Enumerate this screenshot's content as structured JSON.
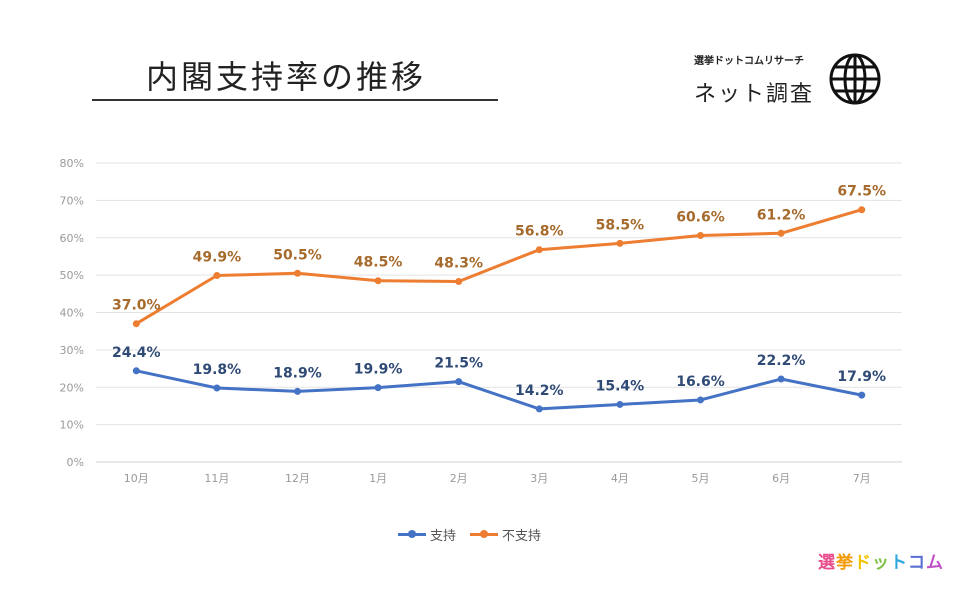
{
  "header": {
    "title": "内閣支持率の推移",
    "brand_small": "選挙ドットコムリサーチ",
    "brand_large": "ネット調査",
    "globe_icon": "globe-icon"
  },
  "chart_data": {
    "type": "line",
    "categories": [
      "10月",
      "11月",
      "12月",
      "1月",
      "2月",
      "3月",
      "4月",
      "5月",
      "6月",
      "7月"
    ],
    "series": [
      {
        "name": "支持",
        "color": "#4472C4",
        "values": [
          24.4,
          19.8,
          18.9,
          19.9,
          21.5,
          14.2,
          15.4,
          16.6,
          22.2,
          17.9
        ],
        "labels": [
          "24.4%",
          "19.8%",
          "18.9%",
          "19.9%",
          "21.5%",
          "14.2%",
          "15.4%",
          "16.6%",
          "22.2%",
          "17.9%"
        ]
      },
      {
        "name": "不支持",
        "color": "#ED7D31",
        "values": [
          37.0,
          49.9,
          50.5,
          48.5,
          48.3,
          56.8,
          58.5,
          60.6,
          61.2,
          67.5
        ],
        "labels": [
          "37.0%",
          "49.9%",
          "50.5%",
          "48.5%",
          "48.3%",
          "56.8%",
          "58.5%",
          "60.6%",
          "61.2%",
          "67.5%"
        ]
      }
    ],
    "ylim": [
      0,
      80
    ],
    "yticks": [
      "0%",
      "10%",
      "20%",
      "30%",
      "40%",
      "50%",
      "60%",
      "70%",
      "80%"
    ],
    "grid": true,
    "legend_position": "bottom"
  },
  "logo": {
    "chars": [
      "選",
      "挙",
      "ド",
      "ッ",
      "ト",
      "コ",
      "ム"
    ],
    "colors": [
      "#E84C8B",
      "#F39800",
      "#F0C300",
      "#7CC242",
      "#2EA7E0",
      "#5B6FD1",
      "#C050C8"
    ]
  }
}
